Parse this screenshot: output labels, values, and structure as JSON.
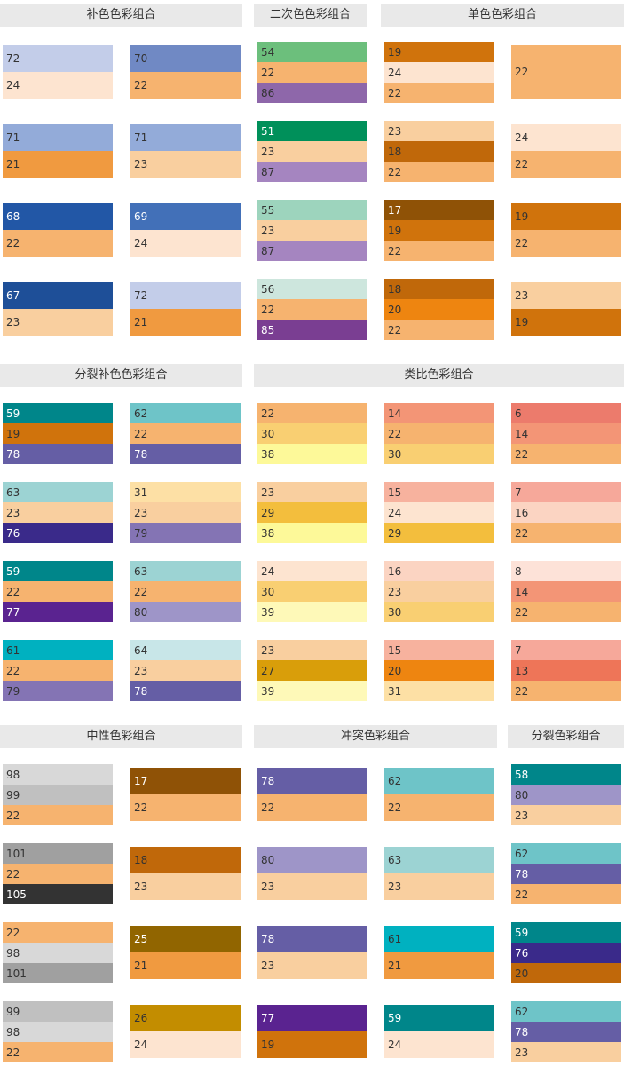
{
  "sections": [
    {
      "title": "补色色彩组合",
      "columns": [
        [
          [
            {
              "label": "72",
              "color": "#c3cde9"
            },
            {
              "label": "24",
              "color": "#fde4d0"
            }
          ],
          [
            {
              "label": "71",
              "color": "#93abd9"
            },
            {
              "label": "21",
              "color": "#f09a40"
            }
          ],
          [
            {
              "label": "68",
              "color": "#2257a6"
            },
            {
              "label": "22",
              "color": "#f6b36f"
            }
          ],
          [
            {
              "label": "67",
              "color": "#1e4f98"
            },
            {
              "label": "23",
              "color": "#f9cf9f"
            }
          ]
        ],
        [
          [
            {
              "label": "70",
              "color": "#7089c4"
            },
            {
              "label": "22",
              "color": "#f6b36f"
            }
          ],
          [
            {
              "label": "71",
              "color": "#93abd9"
            },
            {
              "label": "23",
              "color": "#f9cf9f"
            }
          ],
          [
            {
              "label": "69",
              "color": "#4270b8"
            },
            {
              "label": "24",
              "color": "#fde4d0"
            }
          ],
          [
            {
              "label": "72",
              "color": "#c3cde9"
            },
            {
              "label": "21",
              "color": "#f09a40"
            }
          ]
        ]
      ]
    },
    {
      "title": "二次色色彩组合",
      "columns": [
        [
          [
            {
              "label": "54",
              "color": "#6cbf7c"
            },
            {
              "label": "22",
              "color": "#f6b36f"
            },
            {
              "label": "86",
              "color": "#8e67aa"
            }
          ],
          [
            {
              "label": "51",
              "color": "#00905a"
            },
            {
              "label": "23",
              "color": "#f9cf9f"
            },
            {
              "label": "87",
              "color": "#a585c0"
            }
          ],
          [
            {
              "label": "55",
              "color": "#9dd4bd"
            },
            {
              "label": "23",
              "color": "#f9cf9f"
            },
            {
              "label": "87",
              "color": "#a585c0"
            }
          ],
          [
            {
              "label": "56",
              "color": "#cde6dd"
            },
            {
              "label": "22",
              "color": "#f6b36f"
            },
            {
              "label": "85",
              "color": "#7a3e92"
            }
          ]
        ]
      ]
    },
    {
      "title": "单色色彩组合",
      "columns": [
        [
          [
            {
              "label": "19",
              "color": "#d0730c"
            },
            {
              "label": "24",
              "color": "#fde4d0"
            },
            {
              "label": "22",
              "color": "#f6b36f"
            }
          ],
          [
            {
              "label": "23",
              "color": "#f9cf9f"
            },
            {
              "label": "18",
              "color": "#c0680a"
            },
            {
              "label": "22",
              "color": "#f6b36f"
            }
          ],
          [
            {
              "label": "17",
              "color": "#8f5206"
            },
            {
              "label": "19",
              "color": "#d0730c"
            },
            {
              "label": "22",
              "color": "#f6b36f"
            }
          ],
          [
            {
              "label": "18",
              "color": "#c0680a"
            },
            {
              "label": "20",
              "color": "#ee8510"
            },
            {
              "label": "22",
              "color": "#f6b36f"
            }
          ]
        ],
        [
          [
            {
              "label": "22",
              "color": "#f6b36f"
            }
          ],
          [
            {
              "label": "24",
              "color": "#fde4d0"
            },
            {
              "label": "22",
              "color": "#f6b36f"
            }
          ],
          [
            {
              "label": "19",
              "color": "#d0730c"
            },
            {
              "label": "22",
              "color": "#f6b36f"
            }
          ],
          [
            {
              "label": "23",
              "color": "#f9cf9f"
            },
            {
              "label": "19",
              "color": "#d0730c"
            }
          ]
        ]
      ]
    },
    {
      "title": "分裂补色色彩组合",
      "columns": [
        [
          [
            {
              "label": "59",
              "color": "#00868a"
            },
            {
              "label": "19",
              "color": "#d0730c"
            },
            {
              "label": "78",
              "color": "#655ea5"
            }
          ],
          [
            {
              "label": "63",
              "color": "#9cd3d3"
            },
            {
              "label": "23",
              "color": "#f9cf9f"
            },
            {
              "label": "76",
              "color": "#3a2a8a"
            }
          ],
          [
            {
              "label": "59",
              "color": "#00868a"
            },
            {
              "label": "22",
              "color": "#f6b36f"
            },
            {
              "label": "77",
              "color": "#5a2390"
            }
          ],
          [
            {
              "label": "61",
              "color": "#00b1c0"
            },
            {
              "label": "22",
              "color": "#f6b36f"
            },
            {
              "label": "79",
              "color": "#8474b4"
            }
          ]
        ],
        [
          [
            {
              "label": "62",
              "color": "#6ec4c8"
            },
            {
              "label": "22",
              "color": "#f6b36f"
            },
            {
              "label": "78",
              "color": "#655ea5"
            }
          ],
          [
            {
              "label": "31",
              "color": "#fde0a5"
            },
            {
              "label": "23",
              "color": "#f9cf9f"
            },
            {
              "label": "79",
              "color": "#8474b4"
            }
          ],
          [
            {
              "label": "63",
              "color": "#9cd3d3"
            },
            {
              "label": "22",
              "color": "#f6b36f"
            },
            {
              "label": "80",
              "color": "#9e95c8"
            }
          ],
          [
            {
              "label": "64",
              "color": "#c8e6e8"
            },
            {
              "label": "23",
              "color": "#f9cf9f"
            },
            {
              "label": "78",
              "color": "#655ea5"
            }
          ]
        ]
      ]
    },
    {
      "title": "类比色彩组合",
      "columns": [
        [
          [
            {
              "label": "22",
              "color": "#f6b36f"
            },
            {
              "label": "30",
              "color": "#f9cf72"
            },
            {
              "label": "38",
              "color": "#fdf999"
            }
          ],
          [
            {
              "label": "23",
              "color": "#f9cf9f"
            },
            {
              "label": "29",
              "color": "#f3be3d"
            },
            {
              "label": "38",
              "color": "#fdf999"
            }
          ],
          [
            {
              "label": "24",
              "color": "#fde4d0"
            },
            {
              "label": "30",
              "color": "#f9cf72"
            },
            {
              "label": "39",
              "color": "#fef9b8"
            }
          ],
          [
            {
              "label": "23",
              "color": "#f9cf9f"
            },
            {
              "label": "27",
              "color": "#d99e0a"
            },
            {
              "label": "39",
              "color": "#fef9b8"
            }
          ]
        ],
        [
          [
            {
              "label": "14",
              "color": "#f39576"
            },
            {
              "label": "22",
              "color": "#f6b36f"
            },
            {
              "label": "30",
              "color": "#f9cf72"
            }
          ],
          [
            {
              "label": "15",
              "color": "#f7b29e"
            },
            {
              "label": "24",
              "color": "#fde4d0"
            },
            {
              "label": "29",
              "color": "#f3be3d"
            }
          ],
          [
            {
              "label": "16",
              "color": "#fbd4c2"
            },
            {
              "label": "23",
              "color": "#f9cf9f"
            },
            {
              "label": "30",
              "color": "#f9cf72"
            }
          ],
          [
            {
              "label": "15",
              "color": "#f7b29e"
            },
            {
              "label": "20",
              "color": "#ee8510"
            },
            {
              "label": "31",
              "color": "#fde0a5"
            }
          ]
        ],
        [
          [
            {
              "label": "6",
              "color": "#ec7b6c"
            },
            {
              "label": "14",
              "color": "#f39576"
            },
            {
              "label": "22",
              "color": "#f6b36f"
            }
          ],
          [
            {
              "label": "7",
              "color": "#f6a89a"
            },
            {
              "label": "16",
              "color": "#fbd4c2"
            },
            {
              "label": "22",
              "color": "#f6b36f"
            }
          ],
          [
            {
              "label": "8",
              "color": "#fde2d8"
            },
            {
              "label": "14",
              "color": "#f39576"
            },
            {
              "label": "22",
              "color": "#f6b36f"
            }
          ],
          [
            {
              "label": "7",
              "color": "#f6a89a"
            },
            {
              "label": "13",
              "color": "#ee7558"
            },
            {
              "label": "22",
              "color": "#f6b36f"
            }
          ]
        ]
      ]
    },
    {
      "title": "中性色彩组合",
      "columns": [
        [
          [
            {
              "label": "98",
              "color": "#d8d8d8"
            },
            {
              "label": "99",
              "color": "#c0c0c0"
            },
            {
              "label": "22",
              "color": "#f6b36f"
            }
          ],
          [
            {
              "label": "101",
              "color": "#a0a0a0"
            },
            {
              "label": "22",
              "color": "#f6b36f"
            },
            {
              "label": "105",
              "color": "#333333"
            }
          ],
          [
            {
              "label": "22",
              "color": "#f6b36f"
            },
            {
              "label": "98",
              "color": "#d8d8d8"
            },
            {
              "label": "101",
              "color": "#a0a0a0"
            }
          ],
          [
            {
              "label": "99",
              "color": "#c0c0c0"
            },
            {
              "label": "98",
              "color": "#d8d8d8"
            },
            {
              "label": "22",
              "color": "#f6b36f"
            }
          ]
        ],
        [
          [
            {
              "label": "17",
              "color": "#8f5206"
            },
            {
              "label": "22",
              "color": "#f6b36f"
            }
          ],
          [
            {
              "label": "18",
              "color": "#c0680a"
            },
            {
              "label": "23",
              "color": "#f9cf9f"
            }
          ],
          [
            {
              "label": "25",
              "color": "#916500"
            },
            {
              "label": "21",
              "color": "#f09a40"
            }
          ],
          [
            {
              "label": "26",
              "color": "#c38d00"
            },
            {
              "label": "24",
              "color": "#fde4d0"
            }
          ]
        ]
      ]
    },
    {
      "title": "冲突色彩组合",
      "columns": [
        [
          [
            {
              "label": "78",
              "color": "#655ea5"
            },
            {
              "label": "22",
              "color": "#f6b36f"
            }
          ],
          [
            {
              "label": "80",
              "color": "#9e95c8"
            },
            {
              "label": "23",
              "color": "#f9cf9f"
            }
          ],
          [
            {
              "label": "78",
              "color": "#655ea5"
            },
            {
              "label": "23",
              "color": "#f9cf9f"
            }
          ],
          [
            {
              "label": "77",
              "color": "#5a2390"
            },
            {
              "label": "19",
              "color": "#d0730c"
            }
          ]
        ],
        [
          [
            {
              "label": "62",
              "color": "#6ec4c8"
            },
            {
              "label": "22",
              "color": "#f6b36f"
            }
          ],
          [
            {
              "label": "63",
              "color": "#9cd3d3"
            },
            {
              "label": "23",
              "color": "#f9cf9f"
            }
          ],
          [
            {
              "label": "61",
              "color": "#00b1c0"
            },
            {
              "label": "21",
              "color": "#f09a40"
            }
          ],
          [
            {
              "label": "59",
              "color": "#00868a"
            },
            {
              "label": "24",
              "color": "#fde4d0"
            }
          ]
        ]
      ]
    },
    {
      "title": "分裂色彩组合",
      "columns": [
        [
          [
            {
              "label": "58",
              "color": "#00868a"
            },
            {
              "label": "80",
              "color": "#9e95c8"
            },
            {
              "label": "23",
              "color": "#f9cf9f"
            }
          ],
          [
            {
              "label": "62",
              "color": "#6ec4c8"
            },
            {
              "label": "78",
              "color": "#655ea5"
            },
            {
              "label": "22",
              "color": "#f6b36f"
            }
          ],
          [
            {
              "label": "59",
              "color": "#00868a"
            },
            {
              "label": "76",
              "color": "#3a2a8a"
            },
            {
              "label": "20",
              "color": "#c0680a"
            }
          ],
          [
            {
              "label": "62",
              "color": "#6ec4c8"
            },
            {
              "label": "78",
              "color": "#655ea5"
            },
            {
              "label": "23",
              "color": "#f9cf9f"
            }
          ]
        ]
      ]
    }
  ]
}
